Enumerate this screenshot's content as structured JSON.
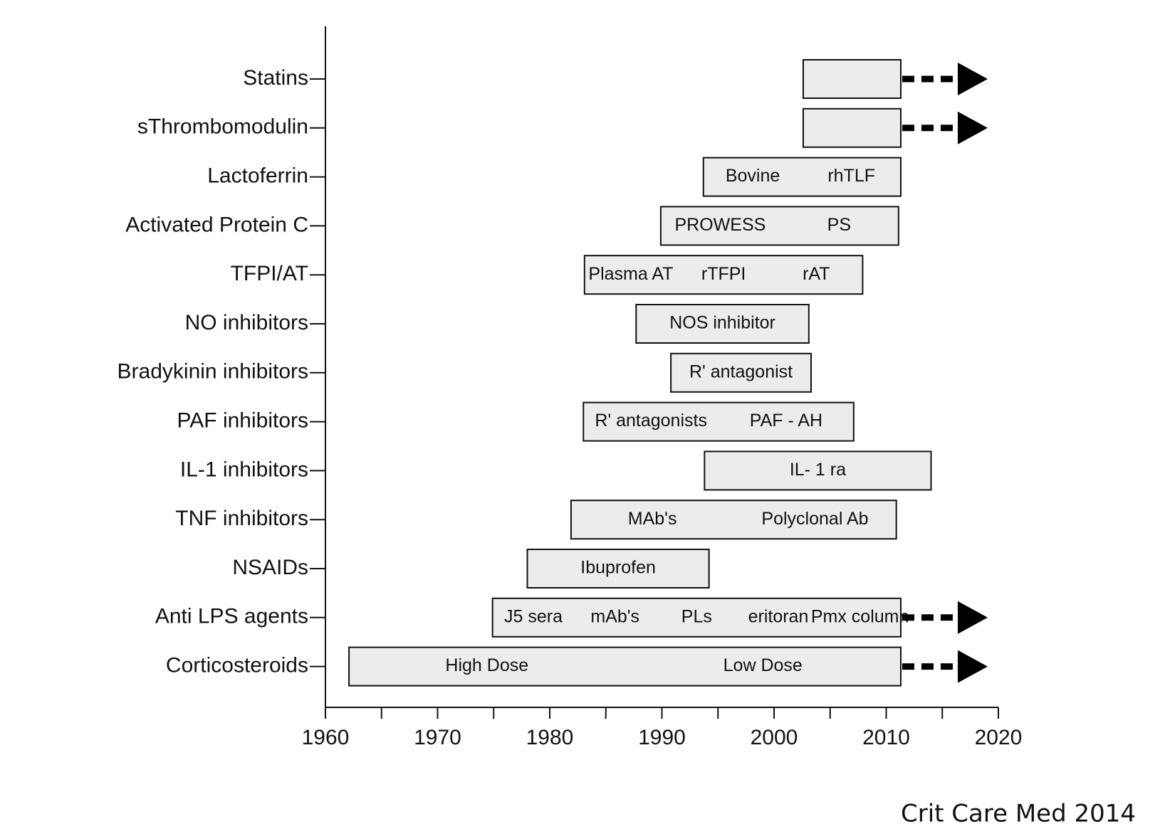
{
  "chart_data": {
    "type": "timeline",
    "categories": [
      "Statins",
      "sThrombomodulin",
      "Lactoferrin",
      "Activated Protein C",
      "TFPI/AT",
      "NO inhibitors",
      "Bradykinin inhibitors",
      "PAF inhibitors",
      "IL-1 inhibitors",
      "TNF inhibitors",
      "NSAIDs",
      "Anti LPS agents",
      "Corticosteroids"
    ],
    "start": [
      2002.6,
      2002.6,
      1993.7,
      1989.9,
      1983.1,
      1987.7,
      1990.8,
      1983.0,
      1993.8,
      1981.9,
      1978.0,
      1974.9,
      1962.1
    ],
    "end": [
      2011.3,
      2011.3,
      2011.3,
      2011.1,
      2007.9,
      2003.1,
      2003.3,
      2007.1,
      2014.0,
      2010.9,
      1994.2,
      2011.3,
      2011.3
    ],
    "bar_labels": [
      [],
      [],
      [
        "Bovine",
        "rhTLF"
      ],
      [
        "PROWESS",
        "PS"
      ],
      [
        "Plasma AT",
        "rTFPI",
        "rAT"
      ],
      [
        "NOS inhibitor"
      ],
      [
        "R' antagonist"
      ],
      [
        "R' antagonists",
        "PAF - AH"
      ],
      [
        "IL- 1 ra"
      ],
      [
        "MAb's",
        "Polyclonal Ab"
      ],
      [
        "Ibuprofen"
      ],
      [
        "J5 sera",
        "mAb's",
        "PLs",
        "eritoran",
        "Pmx column"
      ],
      [
        "High Dose",
        "Low Dose"
      ]
    ],
    "ongoing": [
      true,
      true,
      false,
      false,
      false,
      false,
      false,
      false,
      false,
      false,
      false,
      true,
      true
    ],
    "color": "#ececec",
    "xlim": [
      1960,
      2020
    ],
    "xticks": [
      1960,
      1970,
      1980,
      1990,
      2000,
      2010,
      2020
    ],
    "xminorticks": [
      1965,
      1975,
      1985,
      1995,
      2005,
      2015
    ],
    "source": "Crit Care Med 2014"
  }
}
